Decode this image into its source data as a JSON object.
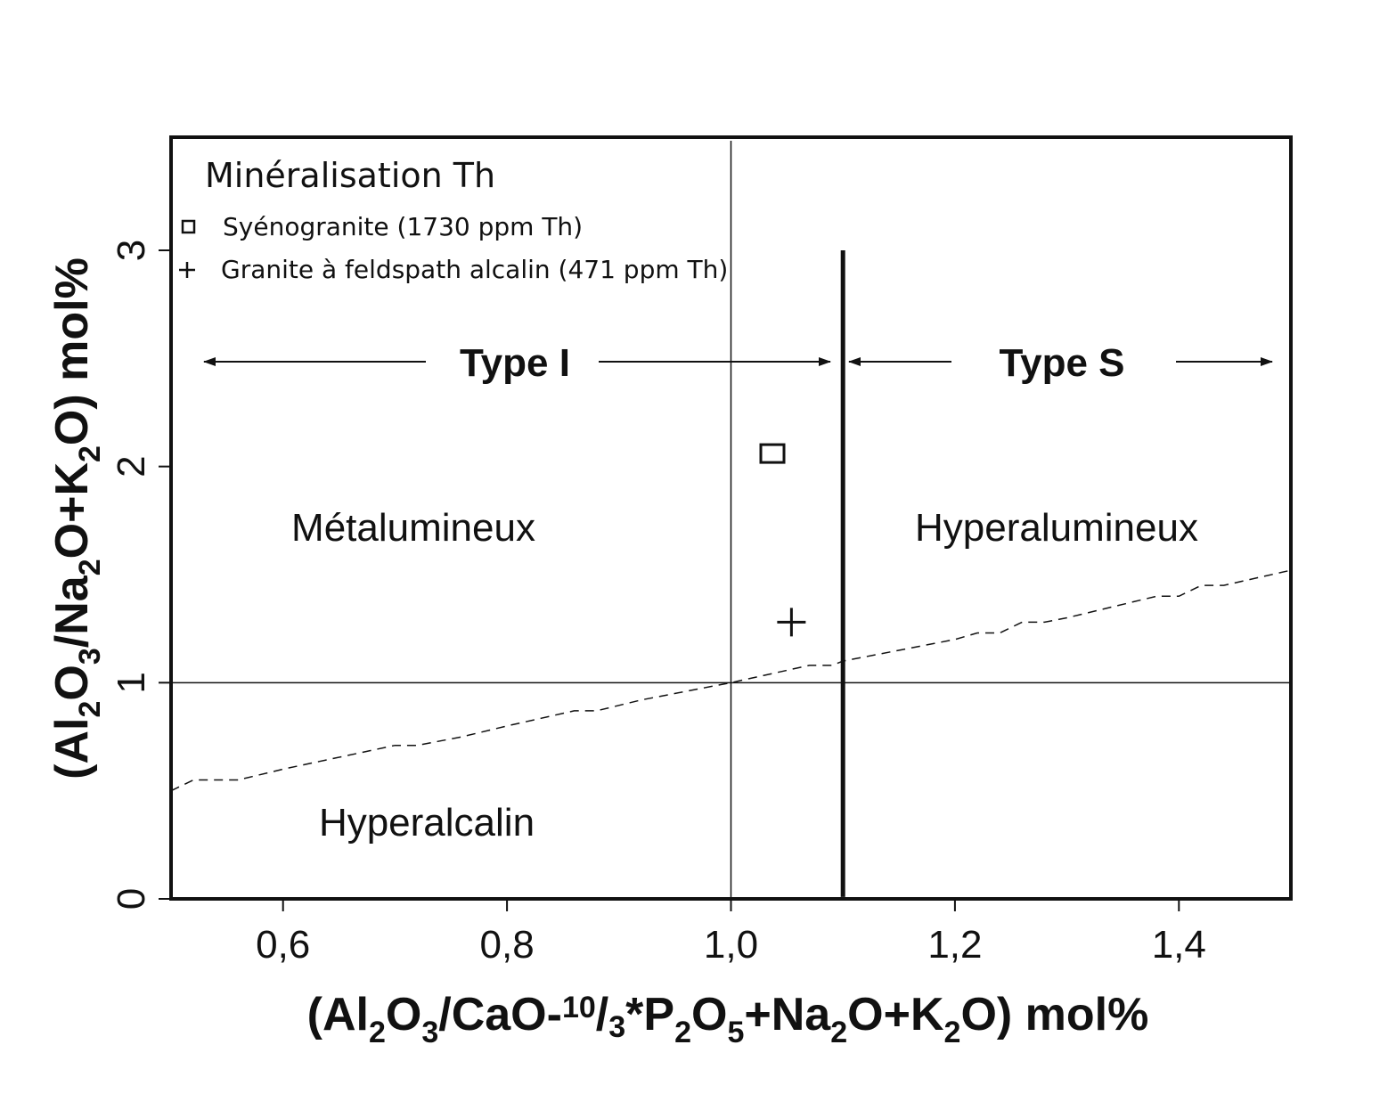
{
  "chart_data": {
    "type": "scatter",
    "title": "",
    "xlabel": "(Al2O3/CaO-10/3*P2O5+Na2O+K2O) mol%",
    "ylabel": "(Al2O3/Na2O+K2O) mol%",
    "xlim": [
      0.5,
      1.5
    ],
    "ylim": [
      0,
      3.5
    ],
    "x_ticks": [
      0.6,
      0.8,
      1.0,
      1.2,
      1.4
    ],
    "x_tick_labels": [
      "0,6",
      "0,8",
      "1,0",
      "1,2",
      "1,4"
    ],
    "y_ticks": [
      0,
      1,
      2,
      3
    ],
    "y_tick_labels": [
      "0",
      "1",
      "2",
      "3"
    ],
    "grid": false,
    "legend": {
      "placement": "top-left",
      "title": "Minéralisation Th",
      "entries": [
        {
          "marker": "square",
          "label": "Syénogranite (1730 ppm Th)"
        },
        {
          "marker": "plus",
          "label": "Granite à feldspath alcalin (471 ppm Th)"
        }
      ]
    },
    "series": [
      {
        "name": "Syénogranite (1730 ppm Th)",
        "marker": "square",
        "points": [
          {
            "x": 1.037,
            "y": 2.06
          }
        ]
      },
      {
        "name": "Granite à feldspath alcalin (471 ppm Th)",
        "marker": "plus",
        "points": [
          {
            "x": 1.054,
            "y": 1.28
          }
        ]
      }
    ],
    "reference_lines": {
      "vertical_thin_x": 1.0,
      "horizontal_thin_y": 1.0,
      "vertical_thick_x": 1.1,
      "vertical_thick_y_range": [
        0.05,
        3.0
      ]
    },
    "dashed_boundary": {
      "x": [
        0.5,
        0.52,
        0.56,
        0.6,
        0.7,
        0.72,
        0.76,
        0.8,
        0.86,
        0.88,
        0.92,
        1.0,
        1.07,
        1.09,
        1.1,
        1.2,
        1.22,
        1.24,
        1.26,
        1.28,
        1.3,
        1.38,
        1.4,
        1.42,
        1.44,
        1.5
      ],
      "y": [
        0.5,
        0.55,
        0.55,
        0.6,
        0.71,
        0.71,
        0.75,
        0.8,
        0.87,
        0.87,
        0.92,
        1.0,
        1.08,
        1.08,
        1.1,
        1.2,
        1.23,
        1.23,
        1.28,
        1.28,
        1.3,
        1.4,
        1.4,
        1.45,
        1.45,
        1.52
      ]
    },
    "annotations": {
      "type_i": "Type I",
      "type_s": "Type S",
      "metaluminous": "Métalumineux",
      "peraluminous": "Hyperalumineux",
      "peralkaline": "Hyperalcalin"
    },
    "colors": {
      "ink": "#111111",
      "background": "#ffffff"
    }
  }
}
